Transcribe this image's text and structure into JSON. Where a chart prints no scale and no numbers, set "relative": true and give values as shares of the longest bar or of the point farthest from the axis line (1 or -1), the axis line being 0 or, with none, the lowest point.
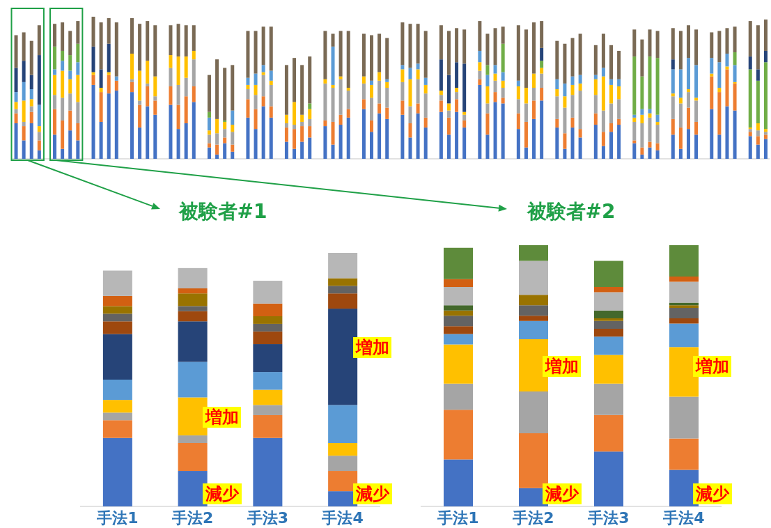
{
  "chart_data": [
    {
      "type": "bar",
      "stacked": true,
      "relative": true,
      "categories": [
        null,
        null,
        null,
        null,
        null,
        null,
        null,
        null,
        null,
        null,
        null,
        null,
        null,
        null,
        null,
        null,
        null,
        null,
        null,
        null,
        null,
        null,
        null,
        null,
        null,
        null,
        null,
        null,
        null,
        null,
        null,
        null,
        null,
        null,
        null,
        null,
        null,
        null,
        null,
        null,
        null,
        null,
        null,
        null,
        null,
        null,
        null,
        null,
        null,
        null,
        null,
        null,
        null,
        null,
        null,
        null,
        null,
        null,
        null,
        null,
        null,
        null,
        null,
        null,
        null,
        null,
        null,
        null,
        null,
        null,
        null,
        null,
        null,
        null,
        null,
        null,
        null,
        null,
        null
      ],
      "series": [
        {
          "color": "#4472c4",
          "values": [
            0.25,
            0.13,
            0.25,
            0.06,
            0.17,
            0.07,
            0.2,
            0.13,
            0.52,
            0.26,
            0.46,
            0.48,
            0.47,
            0.22,
            0.37,
            0.31,
            0.38,
            0.21,
            0.25,
            0.4,
            0.08,
            0.03,
            0.11,
            0.05,
            0.29,
            0.21,
            0.37,
            0.29,
            0.12,
            0.07,
            0.12,
            0.15,
            0.23,
            0.1,
            0.24,
            0.29,
            0.35,
            0.19,
            0.32,
            0.28,
            0.31,
            0.15,
            0.32,
            0.22,
            0.33,
            0.17,
            0.33,
            0.22,
            0.52,
            0.17,
            0.4,
            0.39,
            0.21,
            0.08,
            0.28,
            0.41,
            0.22,
            0.07,
            0.22,
            0.15,
            0.24,
            0.09,
            0.19,
            0.24,
            0.11,
            0.03,
            0.08,
            0.06,
            0.17,
            0.07,
            0.21,
            0.17,
            0.35,
            0.17,
            0.37,
            0.34,
            0.16,
            0.1,
            0.14
          ]
        },
        {
          "color": "#ed7d31",
          "values": [
            0.07,
            0.1,
            0.08,
            0.07,
            0.18,
            0.2,
            0.14,
            0.12,
            0.07,
            0.21,
            0.13,
            0.07,
            0.07,
            0.16,
            0.14,
            0.1,
            0.13,
            0.17,
            0.19,
            0.11,
            0.03,
            0.07,
            0.04,
            0.05,
            0.13,
            0.14,
            0.07,
            0.08,
            0.1,
            0.14,
            0.11,
            0.08,
            0.04,
            0.16,
            0.07,
            0.06,
            0.07,
            0.08,
            0.07,
            0.08,
            0.1,
            0.1,
            0.07,
            0.07,
            0.08,
            0.12,
            0.09,
            0.05,
            0.04,
            0.15,
            0.07,
            0.04,
            0.11,
            0.18,
            0.13,
            0.09,
            0.06,
            0.11,
            0.07,
            0.06,
            0.08,
            0.1,
            0.06,
            0.04,
            0.02,
            0.05,
            0.04,
            0.05,
            0.11,
            0.15,
            0.15,
            0.09,
            0.23,
            0.3,
            0.26,
            0.19,
            0.03,
            0.06,
            0.03
          ]
        },
        {
          "color": "#a5a5a5",
          "values": [
            0.03,
            0.03,
            0.04,
            0.06,
            0.1,
            0.16,
            0.12,
            0.15,
            null,
            null,
            null,
            null,
            0.02,
            0.03,
            0.02,
            0.03,
            0.13,
            0.14,
            0.13,
            0.19,
            0.06,
            0.08,
            0.06,
            0.09,
            0.07,
            0.1,
            0.15,
            0.15,
            0.03,
            0.03,
            0.03,
            0.05,
            0.26,
            0.24,
            0.25,
            0.13,
            0.11,
            0.16,
            0.16,
            0.14,
            0.13,
            0.12,
            0.17,
            0.17,
            0.04,
            0.05,
            0.05,
            0.04,
            0.06,
            0.07,
            0.08,
            0.07,
            0.1,
            0.13,
            0.09,
            0.1,
            0.16,
            0.18,
            0.16,
            0.27,
            0.13,
            0.15,
            0.14,
            0.14,
            0.13,
            0.17,
            0.17,
            0.13,
            0.16,
            0.17,
            0.11,
            0.15,
            null,
            null,
            null,
            null,
            0.02,
            0.04,
            0.02
          ]
        },
        {
          "color": "#ffc000",
          "values": [
            0.05,
            0.15,
            0.05,
            0.04,
            0.14,
            0.19,
            0.1,
            0.19,
            0.02,
            0.03,
            0.02,
            null,
            0.18,
            0.21,
            0.16,
            0.14,
            0.09,
            0.2,
            0.15,
            0.06,
            0.03,
            0.1,
            0.05,
            0.05,
            0.03,
            0.07,
            0.02,
            0.03,
            0.06,
            0.16,
            0.05,
            0.07,
            0.03,
            0.02,
            0.02,
            0.02,
            0.05,
            0.09,
            0.06,
            0.04,
            0.09,
            0.19,
            0.07,
            0.06,
            0.03,
            0.05,
            0.03,
            0.02,
            0.06,
            0.12,
            0.05,
            0.05,
            0.09,
            0.11,
            0.1,
            0.04,
            0.05,
            0.08,
            0.07,
            0.05,
            0.11,
            0.24,
            0.13,
            0.09,
            0.03,
            0.06,
            0.03,
            0.02,
            0.02,
            0.04,
            0.02,
            0.02,
            0.02,
            0.03,
            0.02,
            0.01,
            0.01,
            0.05,
            0.02
          ]
        },
        {
          "color": "#5b9bd5",
          "values": [
            0.07,
            0.13,
            0.07,
            0.15,
            0.04,
            0.07,
            0.06,
            0.09,
            null,
            null,
            null,
            0.03,
            null,
            null,
            null,
            null,
            null,
            null,
            null,
            null,
            0.09,
            null,
            null,
            0.1,
            0.05,
            0.08,
            0.05,
            0.07,
            null,
            null,
            null,
            null,
            null,
            0.27,
            null,
            null,
            null,
            0.03,
            null,
            0.02,
            0.03,
            0.08,
            0.04,
            0.05,
            null,
            null,
            null,
            null,
            0.08,
            0.08,
            0.06,
            0.06,
            0.04,
            null,
            null,
            null,
            0.07,
            0.09,
            0.06,
            0.06,
            0.03,
            0.06,
            0.04,
            0.05,
            0.02,
            0.04,
            0.03,
            0.05,
            0.17,
            0.2,
            0.22,
            0.23,
            0.11,
            0.18,
            0.09,
            0.12,
            null,
            null,
            null
          ]
        },
        {
          "color": "#70ad47",
          "values": [
            null,
            null,
            null,
            null,
            0.16,
            0.07,
            0.11,
            0.13,
            null,
            null,
            null,
            null,
            null,
            null,
            null,
            null,
            null,
            null,
            null,
            null,
            0.04,
            null,
            0.01,
            null,
            null,
            null,
            null,
            null,
            null,
            null,
            null,
            0.04,
            null,
            null,
            null,
            null,
            null,
            null,
            null,
            null,
            null,
            null,
            null,
            null,
            null,
            null,
            null,
            null,
            null,
            0.07,
            null,
            0.2,
            null,
            null,
            null,
            0.05,
            null,
            null,
            null,
            null,
            null,
            null,
            null,
            null,
            0.41,
            0.23,
            0.37,
            0.4,
            null,
            null,
            null,
            null,
            null,
            null,
            null,
            0.09,
            0.41,
            0.3,
            0.47
          ]
        },
        {
          "color": "#264478",
          "values": [
            0.17,
            0.15,
            0.1,
            0.35,
            null,
            null,
            null,
            null,
            0.18,
            0.13,
            0.2,
            null,
            null,
            null,
            null,
            null,
            null,
            null,
            null,
            null,
            null,
            null,
            null,
            null,
            null,
            null,
            null,
            null,
            null,
            null,
            null,
            null,
            null,
            null,
            null,
            null,
            null,
            null,
            null,
            null,
            null,
            null,
            null,
            null,
            0.22,
            0.2,
            0.18,
            0.34,
            null,
            null,
            null,
            null,
            null,
            null,
            null,
            0.09,
            null,
            null,
            null,
            null,
            null,
            null,
            null,
            null,
            null,
            null,
            null,
            null,
            0.07,
            null,
            null,
            null,
            null,
            null,
            null,
            null,
            0.09,
            0.08,
            0.08
          ]
        },
        {
          "color": "#7a6a55",
          "values": [
            0.23,
            0.2,
            0.24,
            0.21,
            0.16,
            0.2,
            0.17,
            0.16,
            0.21,
            0.33,
            0.18,
            0.38,
            0.25,
            0.33,
            0.28,
            0.36,
            0.21,
            0.23,
            0.22,
            0.18,
            0.26,
            0.42,
            0.37,
            0.32,
            0.33,
            0.3,
            0.27,
            0.31,
            0.35,
            0.31,
            0.35,
            0.33,
            0.34,
            0.09,
            0.32,
            0.4,
            0.3,
            0.32,
            0.27,
            0.29,
            0.3,
            0.31,
            0.28,
            0.33,
            0.24,
            0.31,
            0.24,
            0.24,
            0.21,
            0.22,
            0.26,
            0.12,
            0.39,
            0.41,
            0.36,
            0.19,
            0.27,
            0.28,
            0.27,
            0.29,
            0.21,
            0.24,
            0.24,
            0.2,
            0.19,
            0.26,
            0.19,
            0.19,
            0.22,
            0.27,
            0.23,
            0.25,
            0.18,
            0.22,
            0.18,
            0.18,
            0.25,
            0.31,
            0.22
          ]
        }
      ]
    },
    {
      "type": "bar",
      "stacked": true,
      "relative": true,
      "title": "被験者#1",
      "categories": [
        "手法1",
        "手法2",
        "手法3",
        "手法4"
      ],
      "series": [
        {
          "color": "#4472c4",
          "values": [
            0.27,
            0.14,
            0.27,
            0.06
          ]
        },
        {
          "color": "#ed7d31",
          "values": [
            0.07,
            0.11,
            0.09,
            0.08
          ]
        },
        {
          "color": "#a5a5a5",
          "values": [
            0.03,
            0.03,
            0.04,
            0.06
          ]
        },
        {
          "color": "#ffc000",
          "values": [
            0.05,
            0.15,
            0.06,
            0.05
          ]
        },
        {
          "color": "#5b9bd5",
          "values": [
            0.08,
            0.14,
            0.07,
            0.15
          ]
        },
        {
          "color": "#264478",
          "values": [
            0.18,
            0.16,
            0.11,
            0.38
          ]
        },
        {
          "color": "#9e480e",
          "values": [
            0.05,
            0.04,
            0.05,
            0.06
          ]
        },
        {
          "color": "#636363",
          "values": [
            0.03,
            0.02,
            0.03,
            0.03
          ]
        },
        {
          "color": "#997300",
          "values": [
            0.03,
            0.05,
            0.03,
            0.03
          ]
        },
        {
          "color": "#d26012",
          "values": [
            0.04,
            0.02,
            0.05,
            null
          ]
        },
        {
          "color": "#b7b7b7",
          "values": [
            0.1,
            0.08,
            0.09,
            0.1
          ]
        }
      ],
      "annotations": [
        "増加",
        "減少",
        "増加",
        "減少"
      ]
    },
    {
      "type": "bar",
      "stacked": true,
      "relative": true,
      "title": "被験者#2",
      "categories": [
        "手法1",
        "手法2",
        "手法3",
        "手法4"
      ],
      "series": [
        {
          "color": "#4472c4",
          "values": [
            0.18,
            0.07,
            0.21,
            0.14
          ]
        },
        {
          "color": "#ed7d31",
          "values": [
            0.19,
            0.21,
            0.14,
            0.12
          ]
        },
        {
          "color": "#a5a5a5",
          "values": [
            0.1,
            0.16,
            0.12,
            0.16
          ]
        },
        {
          "color": "#ffc000",
          "values": [
            0.15,
            0.2,
            0.11,
            0.19
          ]
        },
        {
          "color": "#5b9bd5",
          "values": [
            0.04,
            0.07,
            0.07,
            0.09
          ]
        },
        {
          "color": "#9e480e",
          "values": [
            0.03,
            0.02,
            0.03,
            0.02
          ]
        },
        {
          "color": "#636363",
          "values": [
            0.04,
            0.04,
            0.03,
            0.04
          ]
        },
        {
          "color": "#997300",
          "values": [
            0.02,
            0.04,
            0.01,
            0.01
          ]
        },
        {
          "color": "#43682b",
          "values": [
            0.02,
            null,
            0.03,
            0.01
          ]
        },
        {
          "color": "#b7b7b7",
          "values": [
            0.07,
            0.13,
            0.07,
            0.08
          ]
        },
        {
          "color": "#d26012",
          "values": [
            0.03,
            null,
            0.02,
            0.02
          ]
        },
        {
          "color": "#5e8b3b",
          "values": [
            0.12,
            0.06,
            0.1,
            0.12
          ]
        }
      ],
      "annotations": [
        "増加",
        "減少",
        "増加",
        "減少"
      ]
    }
  ]
}
